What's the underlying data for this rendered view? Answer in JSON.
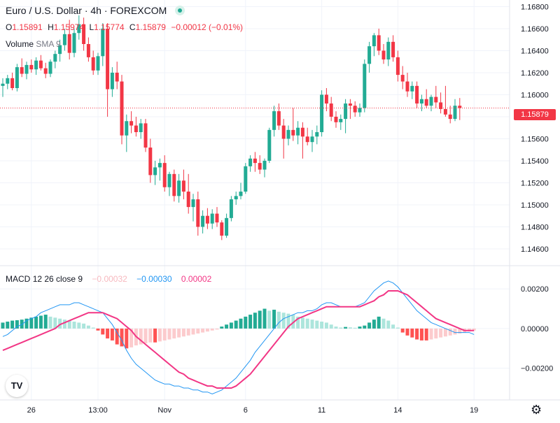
{
  "header": {
    "title": "Euro / U.S. Dollar · 4h · FOREXCOM",
    "ohlc": [
      {
        "k": "O",
        "v": "1.15891"
      },
      {
        "k": "H",
        "v": "1.15974"
      },
      {
        "k": "L",
        "v": "1.15774"
      },
      {
        "k": "C",
        "v": "1.15879"
      }
    ],
    "change": "−0.00012 (−0.01%)",
    "volume_label": "Volume",
    "volume_sub": "SMA 9"
  },
  "macd_legend": {
    "label": "MACD",
    "params": "12 26 close 9",
    "histogram": "−0.00032",
    "macd": "−0.00030",
    "signal": "0.00002"
  },
  "last_price": "1.15879",
  "logo_text": "TV",
  "colors": {
    "up": "#22ab94",
    "down": "#f23645",
    "macd_line": "#2196f3",
    "signal_line": "#f23685",
    "hist_up_strong": "#22ab94",
    "hist_up_weak": "#ace5dc",
    "hist_down_strong": "#ff5252",
    "hist_down_weak": "#fccbcd",
    "grid": "#f0f3fa"
  },
  "chart_data": [
    {
      "type": "candlestick",
      "title": "Euro / U.S. Dollar · 4h · FOREXCOM",
      "y_ticks": [
        "1.16800",
        "1.16600",
        "1.16400",
        "1.16200",
        "1.16000",
        "1.15800",
        "1.15600",
        "1.15400",
        "1.15200",
        "1.15000",
        "1.14800",
        "1.14600"
      ],
      "ylim": [
        1.1446,
        1.1686
      ],
      "x_ticks": [
        {
          "label": "26",
          "index": 6
        },
        {
          "label": "13:00",
          "index": 20
        },
        {
          "label": "Nov",
          "index": 34
        },
        {
          "label": "6",
          "index": 51
        },
        {
          "label": "11",
          "index": 67
        },
        {
          "label": "14",
          "index": 83
        },
        {
          "label": "19",
          "index": 99
        }
      ],
      "last_price": 1.15879,
      "candles": [
        [
          1.1608,
          1.1615,
          1.1598,
          1.161
        ],
        [
          1.161,
          1.1618,
          1.1605,
          1.1615
        ],
        [
          1.1615,
          1.162,
          1.1604,
          1.1606
        ],
        [
          1.1606,
          1.1628,
          1.1603,
          1.1625
        ],
        [
          1.1625,
          1.1633,
          1.1616,
          1.1619
        ],
        [
          1.1619,
          1.163,
          1.1614,
          1.1627
        ],
        [
          1.1627,
          1.1632,
          1.162,
          1.1623
        ],
        [
          1.1623,
          1.1634,
          1.1618,
          1.1631
        ],
        [
          1.1631,
          1.1636,
          1.1622,
          1.1624
        ],
        [
          1.1624,
          1.1629,
          1.1615,
          1.1619
        ],
        [
          1.1619,
          1.1632,
          1.1616,
          1.163
        ],
        [
          1.163,
          1.164,
          1.1624,
          1.1637
        ],
        [
          1.1637,
          1.165,
          1.163,
          1.1645
        ],
        [
          1.1645,
          1.166,
          1.164,
          1.1655
        ],
        [
          1.1655,
          1.1668,
          1.1632,
          1.1638
        ],
        [
          1.1638,
          1.166,
          1.1634,
          1.1656
        ],
        [
          1.1656,
          1.1672,
          1.165,
          1.1664
        ],
        [
          1.1664,
          1.167,
          1.164,
          1.1646
        ],
        [
          1.1646,
          1.1652,
          1.163,
          1.1634
        ],
        [
          1.1634,
          1.164,
          1.1618,
          1.1622
        ],
        [
          1.1622,
          1.1638,
          1.1618,
          1.1635
        ],
        [
          1.1635,
          1.1665,
          1.1626,
          1.166
        ],
        [
          1.166,
          1.1665,
          1.158,
          1.1605
        ],
        [
          1.1605,
          1.1625,
          1.1598,
          1.162
        ],
        [
          1.162,
          1.163,
          1.1605,
          1.1612
        ],
        [
          1.1612,
          1.1618,
          1.1555,
          1.1563
        ],
        [
          1.1563,
          1.1582,
          1.1548,
          1.1576
        ],
        [
          1.1576,
          1.1585,
          1.1565,
          1.1572
        ],
        [
          1.1572,
          1.158,
          1.1562,
          1.1566
        ],
        [
          1.1566,
          1.1578,
          1.156,
          1.1574
        ],
        [
          1.1574,
          1.1578,
          1.1548,
          1.1552
        ],
        [
          1.1552,
          1.156,
          1.152,
          1.1527
        ],
        [
          1.1527,
          1.154,
          1.1518,
          1.1534
        ],
        [
          1.1534,
          1.1542,
          1.1522,
          1.1538
        ],
        [
          1.1538,
          1.1545,
          1.1512,
          1.1516
        ],
        [
          1.1516,
          1.153,
          1.1508,
          1.1528
        ],
        [
          1.1528,
          1.1532,
          1.1503,
          1.1508
        ],
        [
          1.1508,
          1.1528,
          1.1502,
          1.1522
        ],
        [
          1.1522,
          1.1532,
          1.1505,
          1.1512
        ],
        [
          1.1512,
          1.1528,
          1.1492,
          1.1498
        ],
        [
          1.1498,
          1.151,
          1.1485,
          1.1505
        ],
        [
          1.1505,
          1.1512,
          1.1472,
          1.148
        ],
        [
          1.148,
          1.1495,
          1.1474,
          1.149
        ],
        [
          1.149,
          1.1497,
          1.1478,
          1.1483
        ],
        [
          1.1483,
          1.1496,
          1.1478,
          1.1492
        ],
        [
          1.1492,
          1.1498,
          1.148,
          1.1484
        ],
        [
          1.1484,
          1.1486,
          1.1468,
          1.1472
        ],
        [
          1.1472,
          1.1492,
          1.147,
          1.1488
        ],
        [
          1.1488,
          1.1508,
          1.1485,
          1.1505
        ],
        [
          1.1505,
          1.1512,
          1.15,
          1.1508
        ],
        [
          1.1508,
          1.152,
          1.1505,
          1.1512
        ],
        [
          1.1512,
          1.1538,
          1.151,
          1.1535
        ],
        [
          1.1535,
          1.1545,
          1.153,
          1.1542
        ],
        [
          1.1542,
          1.1548,
          1.153,
          1.1538
        ],
        [
          1.1538,
          1.1545,
          1.1528,
          1.1532
        ],
        [
          1.1532,
          1.1542,
          1.1525,
          1.154
        ],
        [
          1.154,
          1.157,
          1.1538,
          1.1568
        ],
        [
          1.1568,
          1.159,
          1.1562,
          1.1585
        ],
        [
          1.1585,
          1.1592,
          1.1568,
          1.1572
        ],
        [
          1.1572,
          1.1578,
          1.1542,
          1.156
        ],
        [
          1.156,
          1.1572,
          1.1554,
          1.1568
        ],
        [
          1.1568,
          1.1588,
          1.1558,
          1.1563
        ],
        [
          1.1563,
          1.1576,
          1.1555,
          1.157
        ],
        [
          1.157,
          1.1575,
          1.1542,
          1.1562
        ],
        [
          1.1562,
          1.157,
          1.1554,
          1.1557
        ],
        [
          1.1557,
          1.1568,
          1.1548,
          1.1562
        ],
        [
          1.1562,
          1.1572,
          1.1555,
          1.1566
        ],
        [
          1.1566,
          1.1604,
          1.1562,
          1.16
        ],
        [
          1.16,
          1.1606,
          1.1585,
          1.1592
        ],
        [
          1.1592,
          1.1598,
          1.1576,
          1.158
        ],
        [
          1.158,
          1.1585,
          1.157,
          1.1575
        ],
        [
          1.1575,
          1.1582,
          1.1568,
          1.1578
        ],
        [
          1.1578,
          1.1596,
          1.1565,
          1.1592
        ],
        [
          1.1592,
          1.1596,
          1.1578,
          1.159
        ],
        [
          1.159,
          1.1594,
          1.158,
          1.1584
        ],
        [
          1.1584,
          1.1592,
          1.158,
          1.1588
        ],
        [
          1.1588,
          1.1632,
          1.1584,
          1.1628
        ],
        [
          1.1628,
          1.1648,
          1.162,
          1.1644
        ],
        [
          1.1644,
          1.1656,
          1.1635,
          1.1654
        ],
        [
          1.1654,
          1.166,
          1.1636,
          1.164
        ],
        [
          1.164,
          1.1646,
          1.1628,
          1.1632
        ],
        [
          1.1632,
          1.1652,
          1.1626,
          1.1648
        ],
        [
          1.1648,
          1.1654,
          1.163,
          1.1634
        ],
        [
          1.1634,
          1.164,
          1.1612,
          1.1618
        ],
        [
          1.1618,
          1.1626,
          1.1605,
          1.1612
        ],
        [
          1.1612,
          1.162,
          1.1598,
          1.1603
        ],
        [
          1.1603,
          1.1612,
          1.1596,
          1.1608
        ],
        [
          1.1608,
          1.1612,
          1.1588,
          1.1592
        ],
        [
          1.1592,
          1.16,
          1.1585,
          1.1596
        ],
        [
          1.1596,
          1.1605,
          1.1588,
          1.159
        ],
        [
          1.159,
          1.16,
          1.1585,
          1.1598
        ],
        [
          1.1598,
          1.1608,
          1.1588,
          1.1593
        ],
        [
          1.1593,
          1.1602,
          1.1583,
          1.1587
        ],
        [
          1.1587,
          1.1608,
          1.158,
          1.1582
        ],
        [
          1.1582,
          1.159,
          1.1574,
          1.1578
        ],
        [
          1.1578,
          1.1596,
          1.1576,
          1.159
        ],
        [
          1.159,
          1.1597,
          1.1577,
          1.1588
        ]
      ]
    },
    {
      "type": "macd",
      "params": "12 26 close 9",
      "y_ticks": [
        "0.00200",
        "0.00000",
        "−0.00200"
      ],
      "ylim": [
        -0.0036,
        0.0031
      ],
      "macd_line": [
        -0.0004,
        -0.0003,
        -0.0001,
        0.0001,
        0.0002,
        0.0004,
        0.0005,
        0.0006,
        0.0008,
        0.0009,
        0.001,
        0.0011,
        0.0012,
        0.0012,
        0.0012,
        0.0013,
        0.0013,
        0.0012,
        0.0011,
        0.001,
        0.0009,
        0.0008,
        0.0005,
        0.0002,
        -0.0002,
        -0.0006,
        -0.0011,
        -0.0015,
        -0.0018,
        -0.002,
        -0.0022,
        -0.0024,
        -0.0026,
        -0.0027,
        -0.0028,
        -0.0028,
        -0.0029,
        -0.0029,
        -0.003,
        -0.003,
        -0.0031,
        -0.0031,
        -0.0032,
        -0.0032,
        -0.0033,
        -0.0032,
        -0.0031,
        -0.0029,
        -0.0027,
        -0.0025,
        -0.0022,
        -0.0019,
        -0.0016,
        -0.0012,
        -0.0009,
        -0.0006,
        -0.0003,
        0.0,
        0.0003,
        0.0005,
        0.0006,
        0.0007,
        0.0008,
        0.0008,
        0.0009,
        0.0009,
        0.001,
        0.0012,
        0.0013,
        0.0013,
        0.0012,
        0.0011,
        0.0011,
        0.0011,
        0.0011,
        0.0012,
        0.0013,
        0.0016,
        0.0019,
        0.0021,
        0.0023,
        0.0024,
        0.0023,
        0.0021,
        0.0018,
        0.0015,
        0.0012,
        0.0009,
        0.0007,
        0.0005,
        0.0003,
        0.0002,
        0.0001,
        0.0,
        -0.0001,
        -0.0002,
        -0.0002,
        -0.0002,
        -0.0002,
        -0.0003
      ],
      "signal_line": [
        -0.0011,
        -0.001,
        -0.0009,
        -0.0008,
        -0.0007,
        -0.0006,
        -0.0005,
        -0.0004,
        -0.0003,
        -0.0002,
        -0.0001,
        0.0,
        0.0002,
        0.0003,
        0.0004,
        0.0005,
        0.0006,
        0.0007,
        0.0008,
        0.0008,
        0.0008,
        0.0008,
        0.0007,
        0.0006,
        0.0005,
        0.0003,
        0.0001,
        -0.0001,
        -0.0004,
        -0.0006,
        -0.0008,
        -0.001,
        -0.0012,
        -0.0014,
        -0.0016,
        -0.0018,
        -0.002,
        -0.0022,
        -0.0023,
        -0.0025,
        -0.0026,
        -0.0027,
        -0.0028,
        -0.0029,
        -0.0029,
        -0.003,
        -0.003,
        -0.003,
        -0.003,
        -0.0029,
        -0.0027,
        -0.0025,
        -0.0023,
        -0.002,
        -0.0017,
        -0.0014,
        -0.0011,
        -0.0008,
        -0.0005,
        -0.0002,
        0.0001,
        0.0003,
        0.0005,
        0.0006,
        0.0007,
        0.0008,
        0.0009,
        0.001,
        0.0011,
        0.0011,
        0.0011,
        0.0011,
        0.0011,
        0.0011,
        0.0011,
        0.0011,
        0.0012,
        0.0013,
        0.0014,
        0.0016,
        0.0017,
        0.0019,
        0.0019,
        0.0019,
        0.0018,
        0.0017,
        0.0015,
        0.0013,
        0.0011,
        0.0009,
        0.0007,
        0.0005,
        0.0004,
        0.0003,
        0.0002,
        0.0001,
        0.0,
        -0.0001,
        -0.0001,
        -0.0001
      ],
      "histogram": [
        0.0003,
        0.00035,
        0.0004,
        0.00042,
        0.00045,
        0.0005,
        0.00055,
        0.0006,
        0.00065,
        0.0007,
        0.0006,
        0.00055,
        0.0005,
        0.00045,
        0.0004,
        0.00035,
        0.0003,
        0.00025,
        0.00015,
        5e-05,
        -0.0001,
        -0.0003,
        -0.0005,
        -0.0006,
        -0.0008,
        -0.0009,
        -0.001,
        -0.00095,
        -0.00085,
        -0.0008,
        -0.00075,
        -0.0007,
        -0.0007,
        -0.00065,
        -0.0006,
        -0.00055,
        -0.0005,
        -0.00045,
        -0.0004,
        -0.00035,
        -0.0003,
        -0.00025,
        -0.0002,
        -0.00015,
        -0.0001,
        -5e-05,
        0.0001,
        0.0002,
        0.0003,
        0.0004,
        0.0005,
        0.0006,
        0.0007,
        0.0008,
        0.0009,
        0.001,
        0.0009,
        0.00095,
        0.00085,
        0.0008,
        0.00075,
        0.0007,
        0.0006,
        0.00055,
        0.0005,
        0.00045,
        0.0004,
        0.00035,
        0.0003,
        0.0002,
        0.0001,
        5e-05,
        8e-05,
        6e-05,
        4e-05,
        0.0001,
        0.00015,
        0.0003,
        0.00045,
        0.0006,
        0.0005,
        0.0004,
        0.0002,
        5e-05,
        -0.0002,
        -0.00035,
        -0.00045,
        -0.00055,
        -0.0006,
        -0.0006,
        -0.00055,
        -0.0005,
        -0.00045,
        -0.0004,
        -0.00035,
        -0.0003,
        -0.00025,
        -0.0002,
        -0.00015,
        -0.0001
      ]
    }
  ]
}
